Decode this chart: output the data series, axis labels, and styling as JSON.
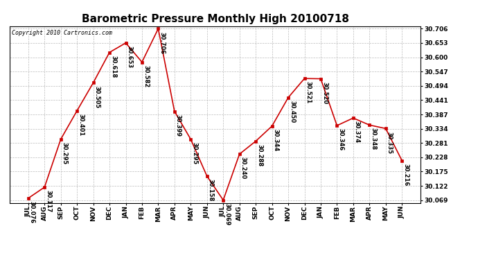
{
  "title": "Barometric Pressure Monthly High 20100718",
  "copyright": "Copyright 2010 Cartronics.com",
  "months": [
    "JUL",
    "AUG",
    "SEP",
    "OCT",
    "NOV",
    "DEC",
    "JAN",
    "FEB",
    "MAR",
    "APR",
    "MAY",
    "JUN",
    "JUL",
    "AUG",
    "SEP",
    "OCT",
    "NOV",
    "DEC",
    "JAN",
    "FEB",
    "MAR",
    "APR",
    "MAY",
    "JUN"
  ],
  "values": [
    30.076,
    30.117,
    30.295,
    30.401,
    30.505,
    30.618,
    30.653,
    30.582,
    30.706,
    30.399,
    30.295,
    30.158,
    30.069,
    30.24,
    30.288,
    30.344,
    30.45,
    30.521,
    30.52,
    30.346,
    30.374,
    30.348,
    30.335,
    30.216
  ],
  "line_color": "#CC0000",
  "marker_color": "#CC0000",
  "bg_color": "#FFFFFF",
  "grid_color": "#BBBBBB",
  "title_fontsize": 11,
  "label_fontsize": 6.5,
  "annotation_fontsize": 6.0,
  "ylim_min": 30.069,
  "ylim_max": 30.706,
  "ytick_values": [
    30.069,
    30.122,
    30.175,
    30.228,
    30.281,
    30.334,
    30.387,
    30.441,
    30.494,
    30.547,
    30.6,
    30.653,
    30.706
  ]
}
